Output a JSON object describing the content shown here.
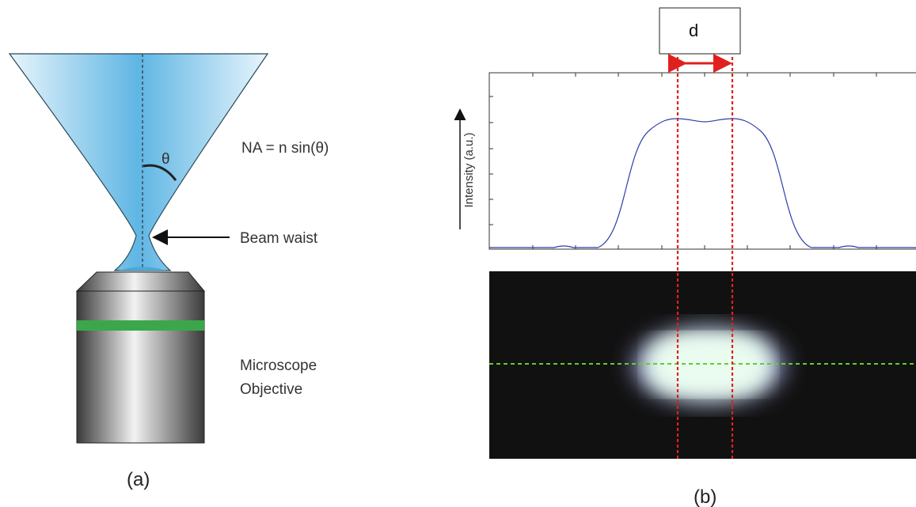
{
  "panel_a": {
    "theta": "θ",
    "equation": "NA = n sin(θ)",
    "beam_waist_label": "Beam waist",
    "objective_label": [
      "Microscope",
      "Objective"
    ],
    "caption": "(a)"
  },
  "panel_b": {
    "d_label": "d",
    "y_axis_label": "Intensity (a.u.)",
    "caption": "(b)"
  }
}
